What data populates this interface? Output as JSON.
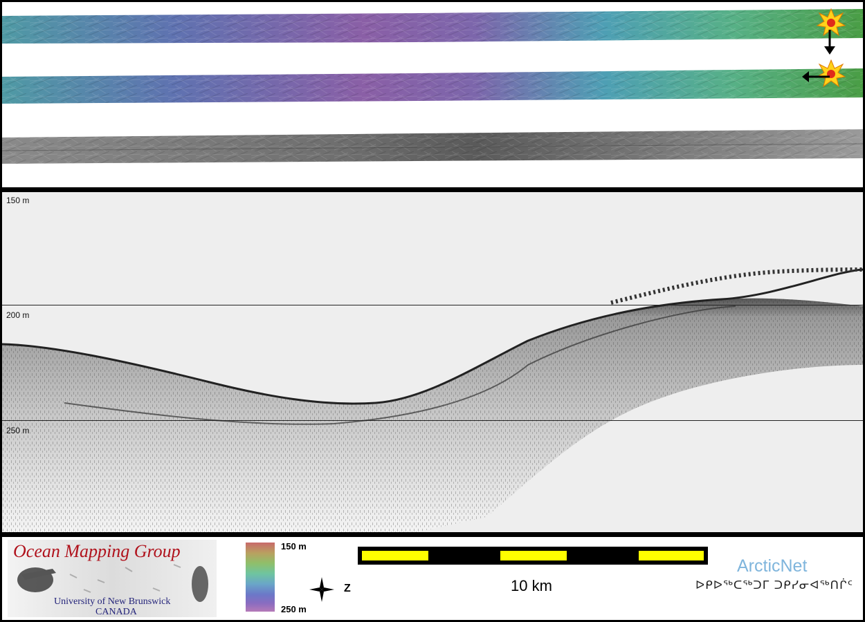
{
  "profile": {
    "depth_labels": [
      "150 m",
      "200 m",
      "250 m"
    ]
  },
  "legend": {
    "group_name": "Ocean Mapping Group",
    "university": "University of New Brunswick",
    "country": "CANADA",
    "colorbar_top": "150 m",
    "colorbar_bottom": "250 m",
    "north_label": "Z",
    "scale_label": "10 km",
    "partner_name": "ArcticNet",
    "partner_subtitle": "ᐅᑭᐅᖅᑕᖅᑐᒥ ᑐᑭᓯᓂᐊᖅᑎᒌᑦ"
  },
  "colors": {
    "frame": "#000000",
    "scale_bar_yellow": "#ffff00",
    "omg_red": "#b0121c",
    "omg_blue": "#23237a",
    "arcticnet_blue": "#7fb5dc"
  },
  "icons": [
    "sun-icon",
    "arrow-down-icon",
    "arrow-left-icon",
    "north-arrow-icon"
  ]
}
